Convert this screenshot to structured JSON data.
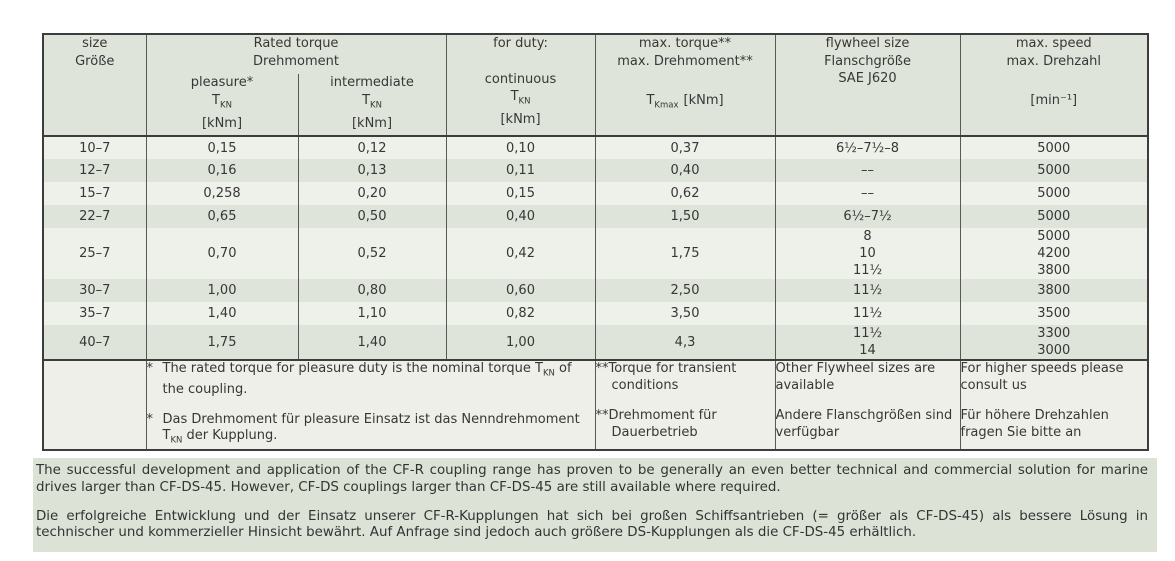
{
  "colors": {
    "page_bg": "#ffffff",
    "header_bg": "#dfe4da",
    "row_light": "#eef0ea",
    "row_dark": "#dfe4da",
    "footnote_bg": "#edefe8",
    "bottom_block_bg": "#dce3d6",
    "border_outer": "#3c3c3c",
    "border_inner": "#585858",
    "text": "#373737"
  },
  "table": {
    "header": {
      "size": {
        "l1": "size",
        "l2": "Größe"
      },
      "rated_torque": {
        "l1": "Rated torque",
        "l2": "Drehmoment"
      },
      "for_duty": {
        "l1": "for duty:"
      },
      "pleasure": {
        "label": "pleasure*",
        "sym_base": "T",
        "sym_sub": "KN",
        "unit": "[kNm]"
      },
      "intermediate": {
        "label": "intermediate",
        "sym_base": "T",
        "sym_sub": "KN",
        "unit": "[kNm]"
      },
      "continuous": {
        "label": "continuous",
        "sym_base": "T",
        "sym_sub": "KN",
        "unit": "[kNm]"
      },
      "max_torque": {
        "l1": "max. torque**",
        "l2": "max. Drehmoment**",
        "sym_base": "T",
        "sym_sub": "Kmax",
        "unit": "[kNm]"
      },
      "flywheel": {
        "l1": "flywheel size",
        "l2": "Flanschgröße",
        "l3": "SAE J620"
      },
      "max_speed": {
        "l1": "max. speed",
        "l2": "max. Drehzahl",
        "unit": "[min⁻¹]"
      }
    },
    "rows": [
      {
        "size": "10–7",
        "pleasure": "0,15",
        "intermediate": "0,12",
        "continuous": "0,10",
        "max_torque": "0,37",
        "flywheel": [
          "6½–7½–8"
        ],
        "speed": [
          "5000"
        ]
      },
      {
        "size": "12–7",
        "pleasure": "0,16",
        "intermediate": "0,13",
        "continuous": "0,11",
        "max_torque": "0,40",
        "flywheel": [
          "––"
        ],
        "speed": [
          "5000"
        ]
      },
      {
        "size": "15–7",
        "pleasure": "0,258",
        "intermediate": "0,20",
        "continuous": "0,15",
        "max_torque": "0,62",
        "flywheel": [
          "––"
        ],
        "speed": [
          "5000"
        ]
      },
      {
        "size": "22–7",
        "pleasure": "0,65",
        "intermediate": "0,50",
        "continuous": "0,40",
        "max_torque": "1,50",
        "flywheel": [
          "6½–7½"
        ],
        "speed": [
          "5000"
        ]
      },
      {
        "size": "25–7",
        "pleasure": "0,70",
        "intermediate": "0,52",
        "continuous": "0,42",
        "max_torque": "1,75",
        "flywheel": [
          "8",
          "10",
          "11½"
        ],
        "speed": [
          "5000",
          "4200",
          "3800"
        ]
      },
      {
        "size": "30–7",
        "pleasure": "1,00",
        "intermediate": "0,80",
        "continuous": "0,60",
        "max_torque": "2,50",
        "flywheel": [
          "11½"
        ],
        "speed": [
          "3800"
        ]
      },
      {
        "size": "35–7",
        "pleasure": "1,40",
        "intermediate": "1,10",
        "continuous": "0,82",
        "max_torque": "3,50",
        "flywheel": [
          "11½"
        ],
        "speed": [
          "3500"
        ]
      },
      {
        "size": "40–7",
        "pleasure": "1,75",
        "intermediate": "1,40",
        "continuous": "1,00",
        "max_torque": "4,3",
        "flywheel": [
          "11½",
          "14"
        ],
        "speed": [
          "3300",
          "3000"
        ]
      }
    ],
    "footnotes": {
      "star_en": {
        "marker": "*",
        "pre": "The rated torque for pleasure duty is the nominal torque T",
        "sub": "KN",
        "post": " of the coupling."
      },
      "star_de": {
        "marker": "*",
        "pre": "Das Drehmoment für pleasure Einsatz ist das Nenndrehmoment T",
        "sub": "KN",
        "post": " der Kupplung."
      },
      "transient": {
        "en": "**Torque for transient conditions",
        "de": "**Drehmoment für Dauerbetrieb"
      },
      "flywheel": {
        "en": "Other Flywheel sizes are available",
        "de": "Andere Flanschgrößen sind verfügbar"
      },
      "speed": {
        "en": "For higher speeds please consult us",
        "de": "Für höhere Drehzahlen fragen Sie bitte an"
      }
    }
  },
  "paragraphs": {
    "en": "The successful development and application of the CF-R coupling range has proven to be generally an even better technical and commercial solution for marine drives larger than CF-DS-45. However, CF-DS couplings larger than CF-DS-45 are still available where required.",
    "de": "Die erfolgreiche Entwicklung und der Einsatz unserer CF-R-Kupplungen hat sich bei großen Schiffsantrieben (= größer als CF-DS-45) als bessere Lösung in technischer und kommerzieller Hinsicht bewährt. Auf Anfrage sind jedoch auch größere DS-Kupplungen als die CF-DS-45 erhältlich."
  }
}
